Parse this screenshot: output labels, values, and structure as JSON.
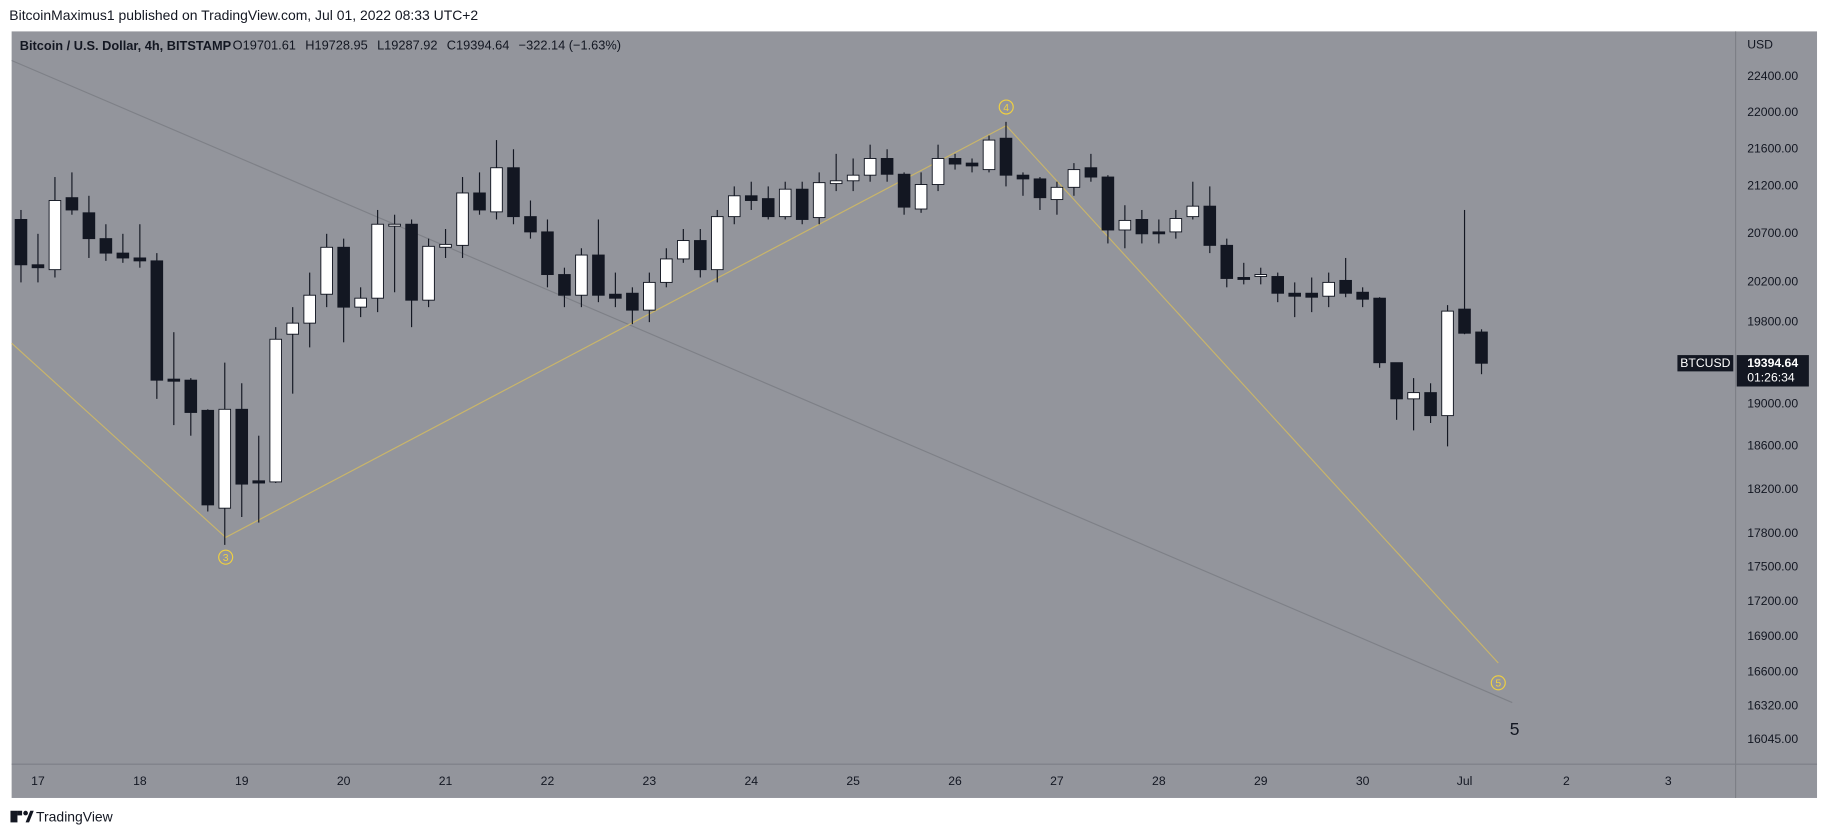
{
  "header": {
    "published": "BitcoinMaximus1 published on TradingView.com, Jul 01, 2022 08:33 UTC+2"
  },
  "footer": {
    "brand": "TradingView"
  },
  "chart_data": {
    "type": "candlestick",
    "title": "Bitcoin / U.S. Dollar, 4h, BITSTAMP",
    "legend_prefixes": [
      "O",
      "H",
      "L",
      "C"
    ],
    "change_label": "−322.14 (−1.63%)",
    "y_axis_unit": "USD",
    "badge_symbol": "BTCUSD",
    "badge_countdown": "01:26:34",
    "annotations": [
      "3",
      "4",
      "5",
      "5"
    ],
    "log_scale": true,
    "grid": false,
    "up_color": "#ffffff",
    "down_color": "#131722",
    "background": "#93959c",
    "x": [
      0,
      1,
      2,
      3,
      4,
      5,
      6,
      7,
      8,
      9,
      10,
      11,
      12,
      13,
      14,
      15,
      16,
      17,
      18,
      19,
      20,
      21,
      22,
      23,
      24,
      25,
      26,
      27,
      28,
      29,
      30,
      31,
      32,
      33,
      34,
      35,
      36,
      37,
      38,
      39,
      40,
      41,
      42,
      43,
      44,
      45,
      46,
      47,
      48,
      49,
      50,
      51,
      52,
      53,
      54,
      55,
      56,
      57,
      58,
      59,
      60,
      61,
      62,
      63,
      64,
      65,
      66,
      67,
      68,
      69,
      70,
      71,
      72,
      73,
      74,
      75,
      76,
      77,
      78,
      79,
      80,
      81,
      82,
      83,
      84,
      85,
      86
    ],
    "open": [
      20850,
      20380,
      20330,
      21080,
      20920,
      20650,
      20500,
      20450,
      20420,
      19240,
      19230,
      18940,
      18030,
      18950,
      18280,
      18270,
      19680,
      19790,
      20080,
      20560,
      19950,
      20040,
      20780,
      20800,
      20020,
      20560,
      20580,
      21130,
      20930,
      21400,
      20880,
      20720,
      20280,
      20070,
      20480,
      20080,
      20090,
      19920,
      20200,
      20440,
      20630,
      20330,
      20880,
      21100,
      21070,
      20880,
      21170,
      20870,
      21230,
      21260,
      21320,
      21500,
      21330,
      20960,
      21220,
      21500,
      21450,
      21380,
      21720,
      21320,
      21280,
      21060,
      21190,
      21400,
      21300,
      20740,
      20850,
      20720,
      20720,
      20880,
      20990,
      20580,
      20250,
      20260,
      20260,
      20090,
      20090,
      20060,
      20220,
      20100,
      20040,
      19400,
      19050,
      19110,
      18890,
      19930,
      19701.61
    ],
    "high": [
      20950,
      20700,
      21300,
      21350,
      21100,
      20800,
      20700,
      20800,
      20500,
      19700,
      19250,
      18950,
      19400,
      19200,
      18700,
      19750,
      19950,
      20300,
      20700,
      20650,
      20150,
      20950,
      20900,
      20850,
      20650,
      20750,
      21300,
      21350,
      21700,
      21600,
      21050,
      20850,
      20350,
      20550,
      20850,
      20300,
      20150,
      20300,
      20550,
      20750,
      20750,
      20950,
      21200,
      21250,
      21200,
      21250,
      21250,
      21350,
      21550,
      21500,
      21650,
      21600,
      21350,
      21350,
      21650,
      21550,
      21500,
      21750,
      21900,
      21350,
      21300,
      21250,
      21450,
      21550,
      21320,
      21000,
      20950,
      20850,
      20950,
      21250,
      21200,
      20650,
      20400,
      20350,
      20300,
      20200,
      20250,
      20300,
      20450,
      20150,
      20050,
      19400,
      19250,
      19200,
      19970,
      20950,
      19728.95
    ],
    "low": [
      20200,
      20200,
      20250,
      20900,
      20450,
      20420,
      20400,
      20350,
      19050,
      18800,
      18700,
      18000,
      17700,
      17950,
      17900,
      18260,
      19100,
      19550,
      19950,
      19600,
      19850,
      19900,
      20100,
      19750,
      19950,
      20450,
      20450,
      20900,
      20850,
      20800,
      20650,
      20150,
      19950,
      19950,
      20000,
      19950,
      19780,
      19800,
      20150,
      20400,
      20250,
      20200,
      20800,
      20950,
      20850,
      20850,
      20800,
      20800,
      21150,
      21150,
      21250,
      21250,
      20900,
      20920,
      21150,
      21380,
      21350,
      21350,
      21200,
      21100,
      20950,
      20900,
      21100,
      21250,
      20600,
      20550,
      20600,
      20600,
      20650,
      20850,
      20500,
      20150,
      20180,
      20180,
      20000,
      19850,
      19900,
      19950,
      20050,
      19950,
      19350,
      18850,
      18750,
      18820,
      18600,
      19680,
      19287.92
    ],
    "close": [
      20380,
      20350,
      21050,
      20950,
      20650,
      20500,
      20450,
      20420,
      19230,
      19220,
      18920,
      18060,
      18950,
      18250,
      18260,
      19630,
      19790,
      20070,
      20560,
      19950,
      20040,
      20800,
      20800,
      20020,
      20570,
      20590,
      21130,
      20950,
      21400,
      20880,
      20720,
      20280,
      20070,
      20480,
      20070,
      20040,
      19920,
      20200,
      20440,
      20630,
      20330,
      20880,
      21100,
      21050,
      20880,
      21170,
      20850,
      21240,
      21260,
      21320,
      21500,
      21330,
      20980,
      21220,
      21500,
      21440,
      21420,
      21700,
      21320,
      21280,
      21080,
      21190,
      21380,
      21300,
      20740,
      20840,
      20700,
      20700,
      20860,
      20990,
      20580,
      20240,
      20230,
      20280,
      20090,
      20060,
      20050,
      20200,
      20090,
      20030,
      19400,
      19050,
      19110,
      18890,
      19910,
      19690,
      19394.64
    ],
    "xlim": [
      -0.55,
      100.96
    ],
    "xticks": [
      {
        "value": 1,
        "label": "17"
      },
      {
        "value": 7,
        "label": "18"
      },
      {
        "value": 13,
        "label": "19"
      },
      {
        "value": 19,
        "label": "20"
      },
      {
        "value": 25,
        "label": "21"
      },
      {
        "value": 31,
        "label": "22"
      },
      {
        "value": 37,
        "label": "23"
      },
      {
        "value": 43,
        "label": "24"
      },
      {
        "value": 49,
        "label": "25"
      },
      {
        "value": 55,
        "label": "26"
      },
      {
        "value": 61,
        "label": "27"
      },
      {
        "value": 67,
        "label": "28"
      },
      {
        "value": 73,
        "label": "29"
      },
      {
        "value": 79,
        "label": "30"
      },
      {
        "value": 85,
        "label": "Jul"
      },
      {
        "value": 91,
        "label": "2"
      },
      {
        "value": 97,
        "label": "3"
      }
    ],
    "ylim": [
      15850,
      22920
    ],
    "yticks": [
      {
        "value": 22400,
        "label": "22400.00"
      },
      {
        "value": 22000,
        "label": "22000.00"
      },
      {
        "value": 21600,
        "label": "21600.00"
      },
      {
        "value": 21200,
        "label": "21200.00"
      },
      {
        "value": 20700,
        "label": "20700.00"
      },
      {
        "value": 20200,
        "label": "20200.00"
      },
      {
        "value": 19800,
        "label": "19800.00"
      },
      {
        "value": 19000,
        "label": "19000.00"
      },
      {
        "value": 18600,
        "label": "18600.00"
      },
      {
        "value": 18200,
        "label": "18200.00"
      },
      {
        "value": 17800,
        "label": "17800.00"
      },
      {
        "value": 17500,
        "label": "17500.00"
      },
      {
        "value": 17200,
        "label": "17200.00"
      },
      {
        "value": 16900,
        "label": "16900.00"
      },
      {
        "value": 16600,
        "label": "16600.00"
      },
      {
        "value": 16320,
        "label": "16320.00"
      },
      {
        "value": 16045,
        "label": "16045.00"
      }
    ]
  }
}
